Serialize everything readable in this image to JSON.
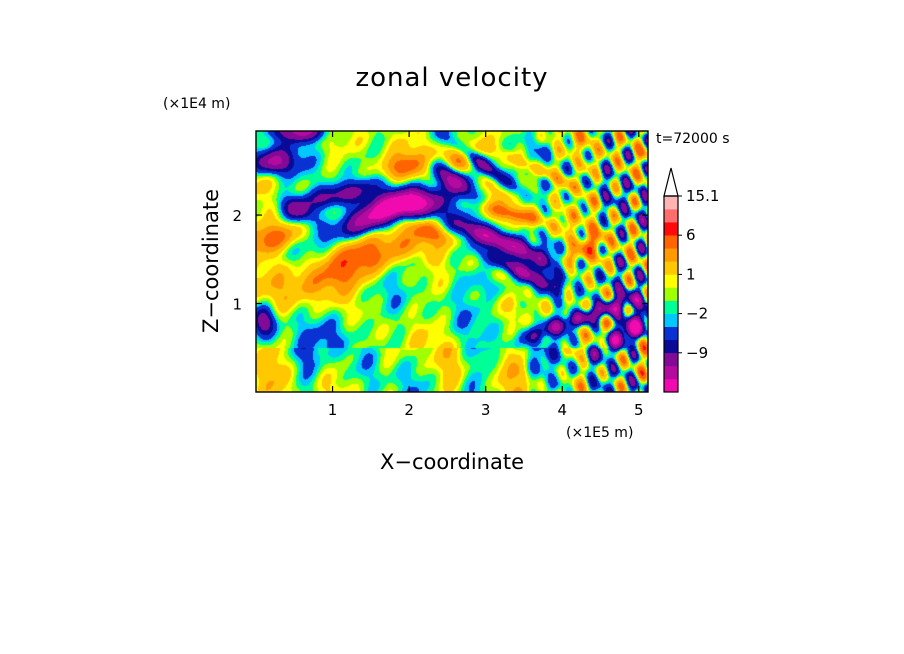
{
  "chart_data": {
    "type": "heatmap",
    "title": "zonal velocity",
    "xlabel": "X−coordinate",
    "ylabel": "Z−coordinate",
    "x_unit": "(×1E5 m)",
    "y_unit": "(×1E4 m)",
    "time_label": "t=72000 s",
    "xlim": [
      0,
      5.12
    ],
    "ylim": [
      0,
      2.95
    ],
    "x_ticks": [
      "1",
      "2",
      "3",
      "4",
      "5"
    ],
    "y_ticks": [
      "1",
      "2"
    ],
    "colorbar": {
      "levels": [
        -15.1,
        -12,
        -9,
        -6,
        -4,
        -2,
        -1,
        0,
        1,
        2,
        4,
        6,
        9,
        12,
        15.1
      ],
      "labels": [
        "15.1",
        "6",
        "1",
        "−2",
        "−9"
      ],
      "colors": [
        "#f00ab0",
        "#b40aa0",
        "#820a96",
        "#0a0a96",
        "#0a32d2",
        "#00c8ff",
        "#00ff96",
        "#a0ff00",
        "#ffff00",
        "#ffc800",
        "#ff9b00",
        "#ff6400",
        "#ff0a0a",
        "#ff6e6e",
        "#ffb4b4"
      ],
      "extend": "max"
    },
    "grid": false
  }
}
